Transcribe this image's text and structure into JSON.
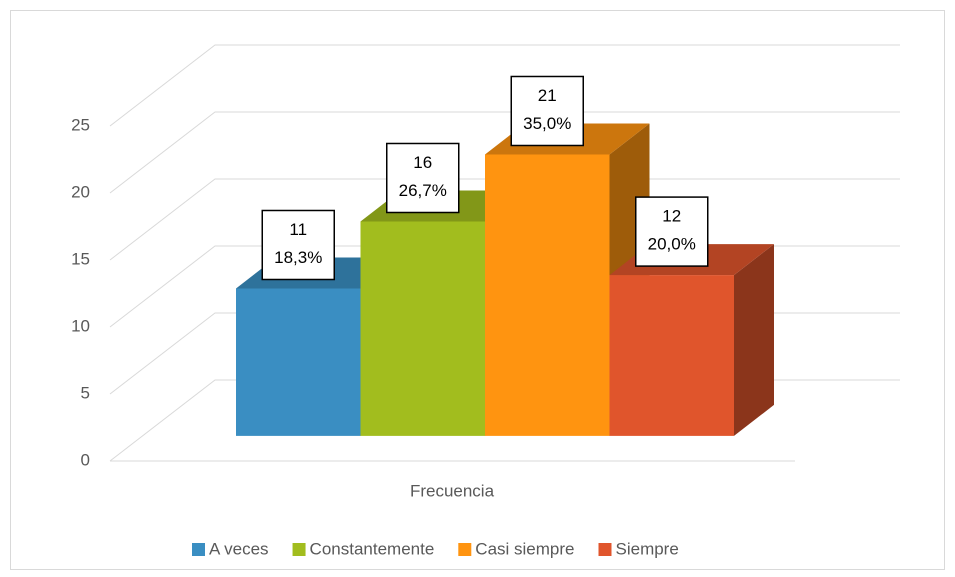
{
  "chart_data": {
    "type": "bar3d",
    "categories": [
      "Frecuencia"
    ],
    "series": [
      {
        "name": "A veces",
        "color": "#3a8ec2",
        "values": [
          11
        ],
        "percent_labels": [
          "18,3%"
        ]
      },
      {
        "name": "Constantemente",
        "color": "#a2bd1e",
        "values": [
          16
        ],
        "percent_labels": [
          "26,7%"
        ]
      },
      {
        "name": "Casi siempre",
        "color": "#ff9410",
        "values": [
          21
        ],
        "percent_labels": [
          "35,0%"
        ]
      },
      {
        "name": "Siempre",
        "color": "#e0552c",
        "values": [
          12
        ],
        "percent_labels": [
          "20,0%"
        ]
      }
    ],
    "ylim": [
      0,
      25
    ],
    "yticks": [
      0,
      5,
      10,
      15,
      20,
      25
    ],
    "grid": true,
    "legend": "bottom"
  }
}
